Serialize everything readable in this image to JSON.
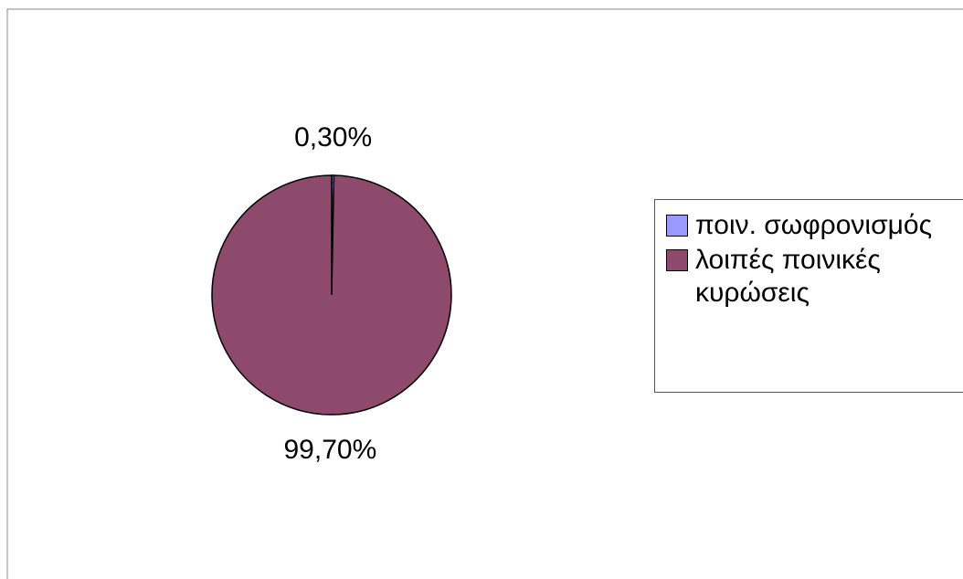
{
  "chart_data": {
    "type": "pie",
    "categories": [
      "ποιν. σωφρονισμός",
      "λοιπές ποινικές κυρώσεις"
    ],
    "values": [
      0.3,
      99.7
    ],
    "value_labels": [
      "0,30%",
      "99,70%"
    ],
    "colors": [
      "#9999ff",
      "#8e4a6c"
    ],
    "legend": "right"
  }
}
